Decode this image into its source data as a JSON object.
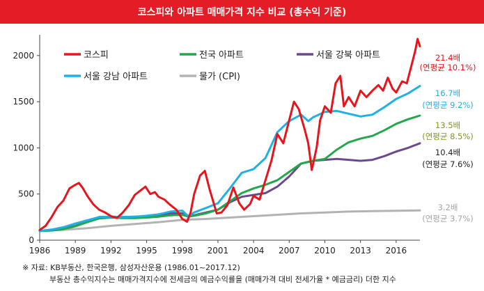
{
  "title": "코스피와 아파트 매매가격 지수 비교 (총수익 기준)",
  "notes": {
    "source": "※ 자료: KB부동산, 한국은행, 삼성자산운용 (1986.01~2017.12)",
    "method": "부동산 총수익지수는 매매가격지수에 전세금의 예금수익률을 (매매가격 대비 전세가율 * 예금금리) 더한 지수"
  },
  "colors": {
    "title_bg": "#e31c25",
    "kospi": "#e8141c",
    "national_apt": "#21a84a",
    "seoul_north": "#6a4a8c",
    "seoul_gangnam": "#1fb1e6",
    "cpi": "#b3b3b3"
  },
  "chart_data": {
    "type": "line",
    "title": "코스피와 아파트 매매가격 지수 비교 (총수익 기준)",
    "xlabel": "",
    "ylabel": "",
    "xlim": [
      1986,
      2018
    ],
    "ylim": [
      0,
      2300
    ],
    "grid": false,
    "legend_position": "top-left",
    "x_ticks": [
      "1986",
      "1989",
      "1992",
      "1995",
      "1998",
      "2001",
      "2004",
      "2007",
      "2010",
      "2013",
      "2016"
    ],
    "y_ticks": [
      "0",
      "500",
      "1000",
      "1500",
      "2000"
    ],
    "series": [
      {
        "name": "코스피",
        "color": "#e8141c",
        "points": [
          [
            1986.0,
            110
          ],
          [
            1986.5,
            155
          ],
          [
            1987.0,
            250
          ],
          [
            1987.5,
            360
          ],
          [
            1988.0,
            430
          ],
          [
            1988.5,
            560
          ],
          [
            1989.0,
            600
          ],
          [
            1989.3,
            620
          ],
          [
            1989.6,
            570
          ],
          [
            1990.0,
            480
          ],
          [
            1990.5,
            390
          ],
          [
            1991.0,
            330
          ],
          [
            1991.5,
            300
          ],
          [
            1992.0,
            260
          ],
          [
            1992.5,
            240
          ],
          [
            1993.0,
            300
          ],
          [
            1993.5,
            380
          ],
          [
            1994.0,
            490
          ],
          [
            1994.5,
            540
          ],
          [
            1994.9,
            580
          ],
          [
            1995.3,
            500
          ],
          [
            1995.7,
            520
          ],
          [
            1996.0,
            470
          ],
          [
            1996.5,
            440
          ],
          [
            1997.0,
            380
          ],
          [
            1997.5,
            330
          ],
          [
            1998.0,
            230
          ],
          [
            1998.4,
            200
          ],
          [
            1998.7,
            300
          ],
          [
            1999.0,
            500
          ],
          [
            1999.5,
            700
          ],
          [
            1999.9,
            750
          ],
          [
            2000.3,
            550
          ],
          [
            2000.9,
            290
          ],
          [
            2001.3,
            300
          ],
          [
            2001.8,
            380
          ],
          [
            2002.3,
            570
          ],
          [
            2002.8,
            400
          ],
          [
            2003.2,
            330
          ],
          [
            2003.7,
            390
          ],
          [
            2004.0,
            480
          ],
          [
            2004.5,
            440
          ],
          [
            2005.0,
            650
          ],
          [
            2005.5,
            860
          ],
          [
            2006.0,
            1150
          ],
          [
            2006.5,
            1050
          ],
          [
            2007.0,
            1300
          ],
          [
            2007.4,
            1500
          ],
          [
            2007.8,
            1420
          ],
          [
            2008.3,
            1200
          ],
          [
            2008.6,
            1050
          ],
          [
            2008.9,
            760
          ],
          [
            2009.3,
            1000
          ],
          [
            2009.6,
            1300
          ],
          [
            2010.0,
            1450
          ],
          [
            2010.5,
            1380
          ],
          [
            2010.9,
            1700
          ],
          [
            2011.3,
            1780
          ],
          [
            2011.6,
            1450
          ],
          [
            2012.0,
            1550
          ],
          [
            2012.5,
            1450
          ],
          [
            2013.0,
            1620
          ],
          [
            2013.5,
            1550
          ],
          [
            2014.0,
            1620
          ],
          [
            2014.5,
            1680
          ],
          [
            2014.9,
            1620
          ],
          [
            2015.3,
            1760
          ],
          [
            2015.7,
            1640
          ],
          [
            2016.0,
            1600
          ],
          [
            2016.5,
            1720
          ],
          [
            2016.9,
            1700
          ],
          [
            2017.3,
            1900
          ],
          [
            2017.6,
            2050
          ],
          [
            2017.8,
            2180
          ],
          [
            2018.0,
            2100
          ]
        ]
      },
      {
        "name": "전국 아파트",
        "color": "#21a84a",
        "points": [
          [
            1986.0,
            100
          ],
          [
            1987.0,
            105
          ],
          [
            1988.0,
            120
          ],
          [
            1989.0,
            150
          ],
          [
            1990.0,
            195
          ],
          [
            1991.0,
            235
          ],
          [
            1992.0,
            245
          ],
          [
            1993.0,
            240
          ],
          [
            1994.0,
            240
          ],
          [
            1995.0,
            245
          ],
          [
            1996.0,
            255
          ],
          [
            1997.0,
            270
          ],
          [
            1998.0,
            275
          ],
          [
            1998.5,
            255
          ],
          [
            1999.0,
            265
          ],
          [
            2000.0,
            290
          ],
          [
            2001.0,
            330
          ],
          [
            2002.0,
            420
          ],
          [
            2003.0,
            510
          ],
          [
            2004.0,
            560
          ],
          [
            2005.0,
            600
          ],
          [
            2006.0,
            650
          ],
          [
            2007.0,
            740
          ],
          [
            2008.0,
            830
          ],
          [
            2009.0,
            860
          ],
          [
            2010.0,
            880
          ],
          [
            2011.0,
            980
          ],
          [
            2012.0,
            1060
          ],
          [
            2013.0,
            1100
          ],
          [
            2014.0,
            1130
          ],
          [
            2015.0,
            1190
          ],
          [
            2016.0,
            1260
          ],
          [
            2017.0,
            1310
          ],
          [
            2018.0,
            1350
          ]
        ]
      },
      {
        "name": "서울 강북 아파트",
        "color": "#6a4a8c",
        "points": [
          [
            1986.0,
            100
          ],
          [
            1987.0,
            110
          ],
          [
            1988.0,
            125
          ],
          [
            1989.0,
            155
          ],
          [
            1990.0,
            200
          ],
          [
            1991.0,
            250
          ],
          [
            1992.0,
            255
          ],
          [
            1993.0,
            250
          ],
          [
            1994.0,
            255
          ],
          [
            1995.0,
            260
          ],
          [
            1996.0,
            270
          ],
          [
            1997.0,
            290
          ],
          [
            1998.0,
            290
          ],
          [
            1998.5,
            260
          ],
          [
            1999.0,
            270
          ],
          [
            2000.0,
            300
          ],
          [
            2001.0,
            330
          ],
          [
            2002.0,
            410
          ],
          [
            2003.0,
            470
          ],
          [
            2004.0,
            490
          ],
          [
            2005.0,
            510
          ],
          [
            2006.0,
            580
          ],
          [
            2007.0,
            690
          ],
          [
            2008.0,
            830
          ],
          [
            2009.0,
            860
          ],
          [
            2010.0,
            870
          ],
          [
            2011.0,
            880
          ],
          [
            2012.0,
            870
          ],
          [
            2013.0,
            860
          ],
          [
            2014.0,
            870
          ],
          [
            2015.0,
            910
          ],
          [
            2016.0,
            960
          ],
          [
            2017.0,
            1000
          ],
          [
            2018.0,
            1050
          ]
        ]
      },
      {
        "name": "서울 강남 아파트",
        "color": "#1fb1e6",
        "points": [
          [
            1986.0,
            100
          ],
          [
            1987.0,
            115
          ],
          [
            1988.0,
            140
          ],
          [
            1989.0,
            180
          ],
          [
            1990.0,
            215
          ],
          [
            1991.0,
            250
          ],
          [
            1992.0,
            255
          ],
          [
            1993.0,
            250
          ],
          [
            1994.0,
            255
          ],
          [
            1995.0,
            265
          ],
          [
            1996.0,
            280
          ],
          [
            1997.0,
            310
          ],
          [
            1998.0,
            320
          ],
          [
            1998.5,
            260
          ],
          [
            1999.0,
            300
          ],
          [
            2000.0,
            350
          ],
          [
            2001.0,
            400
          ],
          [
            2002.0,
            560
          ],
          [
            2003.0,
            730
          ],
          [
            2004.0,
            770
          ],
          [
            2005.0,
            890
          ],
          [
            2006.0,
            1170
          ],
          [
            2007.0,
            1290
          ],
          [
            2008.0,
            1360
          ],
          [
            2008.6,
            1290
          ],
          [
            2009.0,
            1330
          ],
          [
            2010.0,
            1390
          ],
          [
            2011.0,
            1400
          ],
          [
            2012.0,
            1370
          ],
          [
            2013.0,
            1340
          ],
          [
            2014.0,
            1360
          ],
          [
            2015.0,
            1440
          ],
          [
            2016.0,
            1530
          ],
          [
            2017.0,
            1590
          ],
          [
            2018.0,
            1670
          ]
        ]
      },
      {
        "name": "물가 (CPI)",
        "color": "#b3b3b3",
        "points": [
          [
            1986.0,
            100
          ],
          [
            1988.0,
            112
          ],
          [
            1990.0,
            130
          ],
          [
            1992.0,
            155
          ],
          [
            1994.0,
            175
          ],
          [
            1996.0,
            195
          ],
          [
            1998.0,
            220
          ],
          [
            2000.0,
            230
          ],
          [
            2002.0,
            245
          ],
          [
            2004.0,
            260
          ],
          [
            2006.0,
            275
          ],
          [
            2008.0,
            290
          ],
          [
            2010.0,
            300
          ],
          [
            2012.0,
            310
          ],
          [
            2014.0,
            315
          ],
          [
            2016.0,
            318
          ],
          [
            2018.0,
            322
          ]
        ]
      }
    ],
    "annotations": [
      {
        "multiple": "21.4배",
        "cagr": "(연평균 10.1%)",
        "color": "#e8141c",
        "series": "코스피"
      },
      {
        "multiple": "16.7배",
        "cagr": "(연평균 9.2%)",
        "color": "#1fb1e6",
        "series": "서울 강남 아파트"
      },
      {
        "multiple": "13.5배",
        "cagr": "(연평균 8.5%)",
        "color": "#7a9a1a",
        "series": "전국 아파트"
      },
      {
        "multiple": "10.4배",
        "cagr": "(연평균 7.6%)",
        "color": "#222222",
        "series": "서울 강북 아파트"
      },
      {
        "multiple": "3.2배",
        "cagr": "(연평균 3.7%)",
        "color": "#a6a6a6",
        "series": "물가 (CPI)"
      }
    ]
  }
}
